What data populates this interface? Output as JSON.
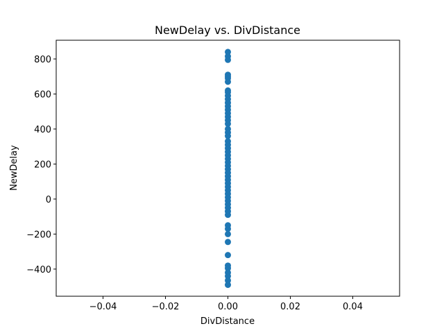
{
  "chart_data": {
    "type": "scatter",
    "title": "NewDelay vs. DivDistance",
    "x_label": "DivDistance",
    "y_label": "NewDelay",
    "color": "#1f77b4",
    "x": [
      0,
      0,
      0,
      0,
      0,
      0,
      0,
      0,
      0,
      0,
      0,
      0,
      0,
      0,
      0,
      0,
      0,
      0,
      0,
      0,
      0,
      0,
      0,
      0,
      0,
      0,
      0,
      0,
      0,
      0,
      0,
      0,
      0,
      0,
      0,
      0,
      0,
      0,
      0,
      0,
      0,
      0,
      0,
      0,
      0,
      0,
      0,
      0,
      0,
      0,
      0,
      0,
      0,
      0
    ],
    "y": [
      840,
      815,
      795,
      710,
      700,
      690,
      670,
      620,
      610,
      590,
      570,
      550,
      530,
      510,
      490,
      470,
      450,
      430,
      400,
      380,
      360,
      330,
      310,
      290,
      270,
      250,
      230,
      210,
      190,
      170,
      150,
      130,
      110,
      90,
      70,
      50,
      30,
      10,
      -10,
      -30,
      -50,
      -70,
      -90,
      -150,
      -170,
      -200,
      -245,
      -320,
      -380,
      -395,
      -420,
      -440,
      -465,
      -490
    ],
    "xlim": [
      -0.055,
      0.055
    ],
    "xticks": [
      {
        "value": -0.04,
        "label": "−0.04"
      },
      {
        "value": -0.02,
        "label": "−0.02"
      },
      {
        "value": 0,
        "label": "0.00"
      },
      {
        "value": 0.02,
        "label": "0.02"
      },
      {
        "value": 0.04,
        "label": "0.04"
      }
    ],
    "ylim": [
      -555,
      907
    ],
    "yticks": [
      {
        "value": -400,
        "label": "−400"
      },
      {
        "value": -200,
        "label": "−200"
      },
      0,
      200,
      400,
      600,
      800
    ]
  }
}
